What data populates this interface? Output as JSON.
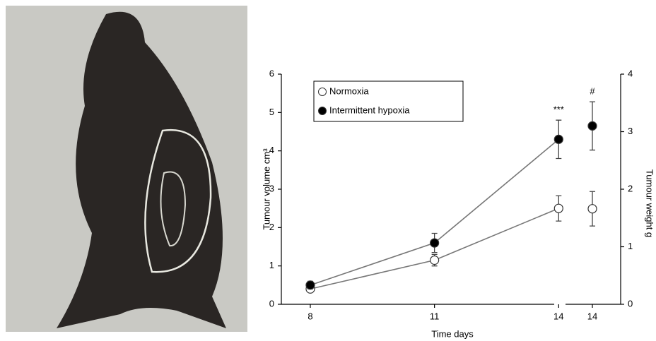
{
  "chart_data": [
    {
      "type": "line",
      "x": [
        8,
        11,
        14
      ],
      "xlim": [
        7.3,
        14.2
      ],
      "xticks": [
        8,
        11,
        14
      ],
      "ylim": [
        0,
        6
      ],
      "yticks": [
        0,
        1,
        2,
        3,
        4,
        5,
        6
      ],
      "ylabel": "Tumour volume cm³",
      "xlabel": "Time days",
      "annotation": "***",
      "legend": "upper left",
      "series": [
        {
          "name": "Normoxia",
          "color": "#ffffff",
          "values": [
            0.4,
            1.15,
            2.5
          ],
          "errors": [
            0.08,
            0.15,
            0.33
          ]
        },
        {
          "name": "Intermittent hypoxia",
          "color": "#000000",
          "values": [
            0.5,
            1.6,
            4.3
          ],
          "errors": [
            0.1,
            0.25,
            0.5
          ]
        }
      ]
    },
    {
      "type": "errorbar",
      "categories": [
        "14"
      ],
      "ylim": [
        0,
        4
      ],
      "yticks": [
        0,
        1,
        2,
        3,
        4
      ],
      "ylabel": "Tumour weight g",
      "annotation": "#",
      "series": [
        {
          "color": "#ffffff",
          "values": [
            1.66
          ],
          "errors": [
            0.3
          ]
        },
        {
          "color": "#000000",
          "values": [
            3.1
          ],
          "errors": [
            0.42
          ]
        }
      ]
    }
  ]
}
